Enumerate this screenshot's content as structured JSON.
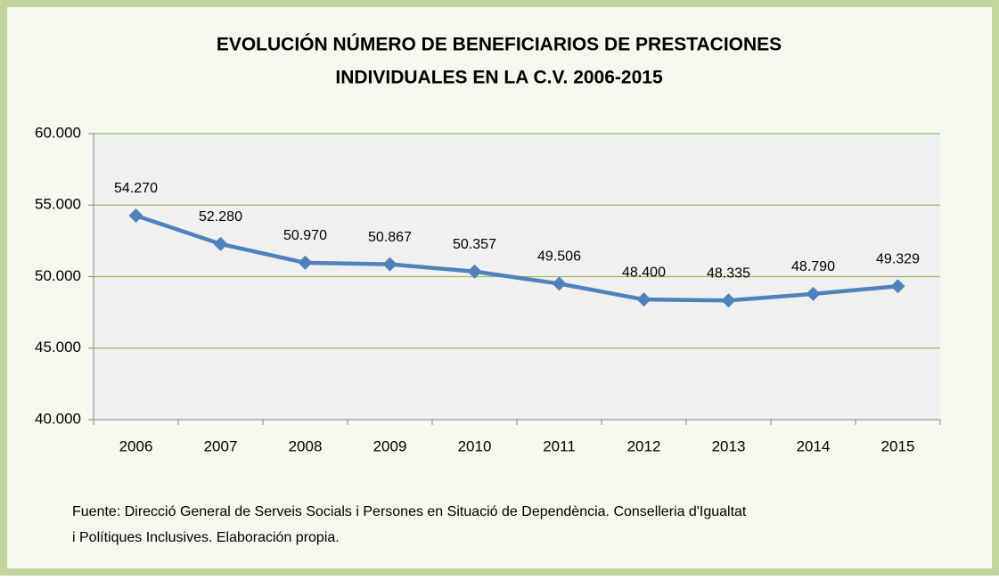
{
  "chart_data": {
    "type": "line",
    "title": [
      "EVOLUCIÓN NÚMERO DE BENEFICIARIOS DE PRESTACIONES",
      "INDIVIDUALES EN LA C.V.  2006-2015"
    ],
    "categories": [
      "2006",
      "2007",
      "2008",
      "2009",
      "2010",
      "2011",
      "2012",
      "2013",
      "2014",
      "2015"
    ],
    "values": [
      54270,
      52280,
      50970,
      50867,
      50357,
      49506,
      48400,
      48335,
      48790,
      49329
    ],
    "value_labels": [
      "54.270",
      "52.280",
      "50.970",
      "50.867",
      "50.357",
      "49.506",
      "48.400",
      "48.335",
      "48.790",
      "49.329"
    ],
    "color": "#4f81bd",
    "ylim": [
      40000,
      60000
    ],
    "yticks": [
      {
        "value": 40000,
        "label": "40.000"
      },
      {
        "value": 45000,
        "label": "45.000"
      },
      {
        "value": 50000,
        "label": "50.000"
      },
      {
        "value": 55000,
        "label": "55.000"
      },
      {
        "value": 60000,
        "label": "60.000"
      }
    ],
    "grid": true,
    "note": [
      "Fuente: Direcció General de Serveis Socials i Persones en Situació de Dependència. Conselleria d'Igualtat",
      "i Polítiques Inclusives. Elaboración propia."
    ]
  }
}
